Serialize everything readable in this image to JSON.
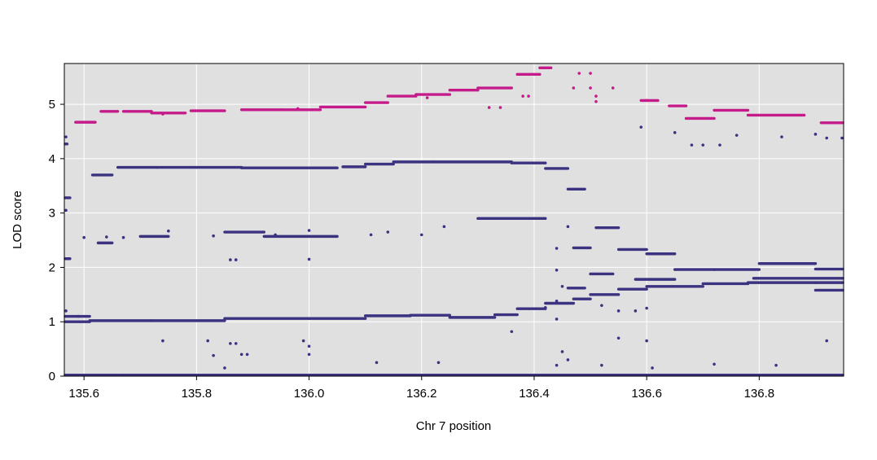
{
  "chart_data": {
    "type": "scatter",
    "title": "",
    "xlabel": "Chr 7 position",
    "ylabel": "LOD score",
    "xlim": [
      135.565,
      136.95
    ],
    "ylim": [
      0,
      5.75
    ],
    "xticks": [
      "135.6",
      "135.8",
      "136.0",
      "136.2",
      "136.4",
      "136.6",
      "136.8"
    ],
    "yticks": [
      "0",
      "1",
      "2",
      "3",
      "4",
      "5"
    ],
    "grid": true,
    "legend": "none",
    "background": "#e0e0e0",
    "series": [
      {
        "color": "#c51b8a",
        "segments": [
          [
            135.585,
            135.62,
            4.67
          ],
          [
            135.63,
            135.66,
            4.87
          ],
          [
            135.67,
            135.72,
            4.87
          ],
          [
            135.72,
            135.78,
            4.84
          ],
          [
            135.79,
            135.85,
            4.88
          ],
          [
            135.88,
            135.95,
            4.9
          ],
          [
            135.95,
            136.02,
            4.9
          ],
          [
            136.02,
            136.1,
            4.95
          ],
          [
            136.1,
            136.14,
            5.03
          ],
          [
            136.14,
            136.19,
            5.15
          ],
          [
            136.19,
            136.25,
            5.18
          ],
          [
            136.25,
            136.3,
            5.26
          ],
          [
            136.3,
            136.36,
            5.3
          ],
          [
            136.37,
            136.41,
            5.55
          ],
          [
            136.41,
            136.43,
            5.67
          ],
          [
            136.59,
            136.62,
            5.07
          ],
          [
            136.64,
            136.67,
            4.97
          ],
          [
            136.67,
            136.72,
            4.74
          ],
          [
            136.72,
            136.78,
            4.89
          ],
          [
            136.78,
            136.88,
            4.8
          ],
          [
            136.91,
            136.95,
            4.66
          ]
        ],
        "points": [
          [
            136.32,
            4.94
          ],
          [
            136.34,
            4.94
          ],
          [
            136.38,
            5.15
          ],
          [
            136.39,
            5.15
          ],
          [
            136.21,
            5.12
          ],
          [
            136.47,
            5.3
          ],
          [
            136.48,
            5.57
          ],
          [
            136.5,
            5.3
          ],
          [
            136.54,
            5.3
          ],
          [
            136.51,
            5.15
          ],
          [
            136.51,
            5.05
          ],
          [
            136.5,
            5.57
          ],
          [
            136.6,
            5.07
          ],
          [
            135.74,
            4.82
          ],
          [
            135.98,
            4.92
          ]
        ]
      },
      {
        "color": "#3b3280",
        "segments": [
          [
            135.565,
            135.57,
            4.27
          ],
          [
            135.565,
            135.575,
            3.28
          ],
          [
            135.565,
            135.575,
            2.16
          ],
          [
            135.615,
            135.65,
            3.7
          ],
          [
            135.66,
            135.73,
            3.84
          ],
          [
            135.73,
            135.8,
            3.84
          ],
          [
            135.8,
            135.88,
            3.84
          ],
          [
            135.88,
            136.05,
            3.83
          ],
          [
            136.06,
            136.1,
            3.85
          ],
          [
            136.1,
            136.15,
            3.9
          ],
          [
            136.15,
            136.22,
            3.94
          ],
          [
            136.22,
            136.36,
            3.94
          ],
          [
            136.36,
            136.42,
            3.92
          ],
          [
            136.42,
            136.46,
            3.82
          ],
          [
            136.46,
            136.49,
            3.44
          ],
          [
            135.625,
            135.65,
            2.45
          ],
          [
            135.7,
            135.75,
            2.57
          ],
          [
            135.85,
            135.92,
            2.65
          ],
          [
            135.92,
            136.0,
            2.57
          ],
          [
            136.0,
            136.05,
            2.57
          ],
          [
            136.3,
            136.42,
            2.9
          ],
          [
            136.47,
            136.5,
            2.36
          ],
          [
            136.51,
            136.55,
            2.73
          ],
          [
            136.55,
            136.6,
            2.33
          ],
          [
            136.6,
            136.65,
            2.25
          ],
          [
            136.65,
            136.72,
            1.96
          ],
          [
            136.72,
            136.8,
            1.96
          ],
          [
            136.8,
            136.9,
            2.07
          ],
          [
            136.9,
            136.95,
            1.97
          ],
          [
            136.5,
            136.54,
            1.88
          ],
          [
            136.58,
            136.65,
            1.78
          ],
          [
            135.565,
            135.61,
            1.1
          ],
          [
            135.565,
            135.61,
            1.0
          ],
          [
            135.61,
            135.72,
            1.02
          ],
          [
            135.72,
            135.85,
            1.02
          ],
          [
            135.85,
            136.0,
            1.06
          ],
          [
            136.0,
            136.1,
            1.06
          ],
          [
            136.1,
            136.18,
            1.11
          ],
          [
            136.18,
            136.25,
            1.12
          ],
          [
            136.25,
            136.33,
            1.08
          ],
          [
            136.33,
            136.37,
            1.13
          ],
          [
            136.37,
            136.42,
            1.24
          ],
          [
            136.42,
            136.47,
            1.34
          ],
          [
            136.47,
            136.5,
            1.42
          ],
          [
            136.5,
            136.55,
            1.5
          ],
          [
            136.55,
            136.6,
            1.6
          ],
          [
            136.6,
            136.7,
            1.65
          ],
          [
            136.7,
            136.78,
            1.7
          ],
          [
            136.78,
            136.9,
            1.72
          ],
          [
            136.9,
            136.95,
            1.72
          ],
          [
            136.9,
            136.95,
            1.58
          ],
          [
            136.46,
            136.49,
            1.62
          ],
          [
            136.79,
            136.95,
            1.8
          ],
          [
            135.565,
            136.95,
            0.02
          ]
        ],
        "points": [
          [
            135.565,
            4.4
          ],
          [
            135.565,
            3.05
          ],
          [
            135.565,
            1.2
          ],
          [
            135.6,
            2.55
          ],
          [
            135.59,
            1.1
          ],
          [
            135.64,
            2.56
          ],
          [
            135.67,
            2.55
          ],
          [
            135.75,
            2.67
          ],
          [
            135.83,
            2.58
          ],
          [
            135.86,
            2.14
          ],
          [
            135.87,
            2.14
          ],
          [
            135.94,
            2.6
          ],
          [
            136.0,
            2.68
          ],
          [
            136.0,
            2.15
          ],
          [
            136.11,
            2.6
          ],
          [
            136.14,
            2.65
          ],
          [
            136.2,
            2.6
          ],
          [
            136.24,
            2.75
          ],
          [
            136.46,
            2.75
          ],
          [
            136.44,
            2.35
          ],
          [
            136.44,
            1.95
          ],
          [
            136.45,
            1.65
          ],
          [
            136.44,
            1.38
          ],
          [
            136.42,
            1.26
          ],
          [
            136.36,
            0.82
          ],
          [
            136.44,
            1.05
          ],
          [
            136.45,
            0.45
          ],
          [
            136.46,
            0.3
          ],
          [
            136.52,
            1.3
          ],
          [
            136.55,
            1.2
          ],
          [
            136.58,
            1.2
          ],
          [
            136.6,
            1.25
          ],
          [
            136.55,
            0.7
          ],
          [
            136.6,
            0.65
          ],
          [
            136.59,
            4.58
          ],
          [
            136.65,
            4.48
          ],
          [
            136.68,
            4.25
          ],
          [
            136.7,
            4.25
          ],
          [
            136.73,
            4.25
          ],
          [
            136.76,
            4.43
          ],
          [
            136.84,
            4.4
          ],
          [
            136.9,
            4.45
          ],
          [
            136.92,
            4.38
          ],
          [
            136.95,
            4.38
          ],
          [
            135.74,
            0.65
          ],
          [
            135.82,
            0.65
          ],
          [
            135.83,
            0.38
          ],
          [
            135.86,
            0.6
          ],
          [
            135.87,
            0.6
          ],
          [
            135.88,
            0.4
          ],
          [
            135.89,
            0.4
          ],
          [
            135.99,
            0.65
          ],
          [
            136.0,
            0.4
          ],
          [
            136.0,
            0.55
          ],
          [
            136.12,
            0.25
          ],
          [
            136.23,
            0.25
          ],
          [
            136.72,
            0.22
          ],
          [
            136.83,
            0.2
          ],
          [
            136.92,
            0.65
          ],
          [
            136.52,
            0.2
          ],
          [
            136.61,
            0.15
          ],
          [
            136.44,
            0.2
          ],
          [
            135.67,
            0.02
          ],
          [
            135.85,
            0.15
          ]
        ]
      }
    ]
  }
}
